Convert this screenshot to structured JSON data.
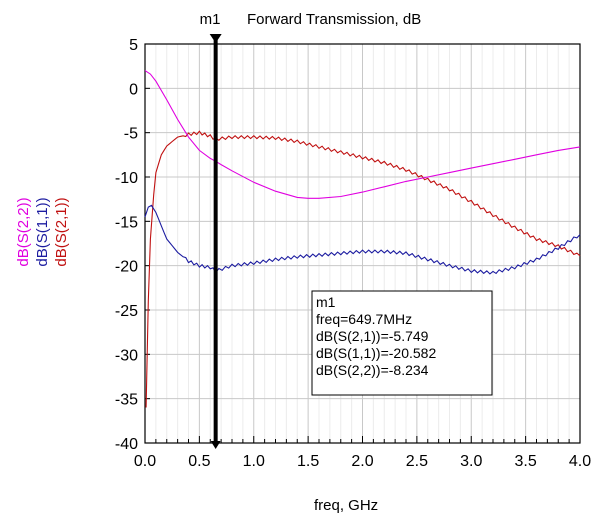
{
  "chart_data": {
    "type": "line",
    "title": "Forward Transmission, dB",
    "xlabel": "freq, GHz",
    "ylabels": [
      {
        "text": "dB(S(2,2))",
        "color": "#e000e0"
      },
      {
        "text": "dB(S(1,1))",
        "color": "#1c1ca0"
      },
      {
        "text": "dB(S(2,1))",
        "color": "#c01010"
      }
    ],
    "xlim": [
      0,
      4
    ],
    "ylim": [
      -40,
      5
    ],
    "xticks": [
      0,
      0.5,
      1,
      1.5,
      2,
      2.5,
      3,
      3.5,
      4
    ],
    "xtick_labels": [
      "0.0",
      "0.5",
      "1.0",
      "1.5",
      "2.0",
      "2.5",
      "3.0",
      "3.5",
      "4.0"
    ],
    "yticks": [
      5,
      0,
      -5,
      -10,
      -15,
      -20,
      -25,
      -30,
      -35,
      -40
    ],
    "ytick_labels": [
      "5",
      "0",
      "-5",
      "-10",
      "-15",
      "-20",
      "-25",
      "-30",
      "-35",
      "-40"
    ],
    "grid": true,
    "series": [
      {
        "name": "dB(S(2,1))",
        "color": "#c01010",
        "x": [
          0.01,
          0.03,
          0.05,
          0.08,
          0.1,
          0.15,
          0.2,
          0.25,
          0.3,
          0.4,
          0.5,
          0.6,
          0.65,
          0.8,
          1.0,
          1.2,
          1.4,
          1.6,
          1.8,
          2.0,
          2.2,
          2.4,
          2.6,
          2.8,
          3.0,
          3.2,
          3.4,
          3.6,
          3.8,
          4.0
        ],
        "y": [
          -36,
          -24,
          -17,
          -12,
          -9.5,
          -7.5,
          -6.5,
          -6,
          -5.5,
          -5.2,
          -5,
          -5.4,
          -5.75,
          -5.5,
          -5.5,
          -5.6,
          -6,
          -6.6,
          -7.2,
          -7.8,
          -8.4,
          -9.2,
          -10.3,
          -11.4,
          -12.8,
          -14.3,
          -15.7,
          -17,
          -17.8,
          -18.9
        ],
        "jitter": true
      },
      {
        "name": "dB(S(1,1))",
        "color": "#1c1ca0",
        "x": [
          0.0,
          0.03,
          0.06,
          0.1,
          0.15,
          0.2,
          0.3,
          0.4,
          0.5,
          0.6,
          0.65,
          0.8,
          1.0,
          1.2,
          1.4,
          1.6,
          1.8,
          2.0,
          2.2,
          2.4,
          2.6,
          2.8,
          3.0,
          3.2,
          3.4,
          3.6,
          3.8,
          4.0
        ],
        "y": [
          -14.5,
          -13.4,
          -13.2,
          -14,
          -15.5,
          -17,
          -18.5,
          -19.5,
          -20,
          -20.2,
          -20.6,
          -20,
          -19.7,
          -19.3,
          -19,
          -18.8,
          -18.6,
          -18.4,
          -18.4,
          -18.6,
          -19.3,
          -20,
          -20.6,
          -20.8,
          -20.2,
          -19.3,
          -18,
          -16.5
        ],
        "jitter": true
      },
      {
        "name": "dB(S(2,2))",
        "color": "#e000e0",
        "x": [
          0.0,
          0.05,
          0.1,
          0.2,
          0.3,
          0.4,
          0.5,
          0.6,
          0.65,
          0.7,
          0.8,
          1.0,
          1.2,
          1.4,
          1.5,
          1.6,
          1.8,
          2.0,
          2.2,
          2.4,
          2.6,
          2.8,
          3.0,
          3.2,
          3.4,
          3.6,
          3.8,
          4.0
        ],
        "y": [
          2,
          1.6,
          0.8,
          -1.3,
          -3.5,
          -5.5,
          -7,
          -7.9,
          -8.23,
          -8.6,
          -9.3,
          -10.6,
          -11.6,
          -12.3,
          -12.4,
          -12.4,
          -12.2,
          -11.7,
          -11.1,
          -10.5,
          -10,
          -9.5,
          -9,
          -8.5,
          -8,
          -7.5,
          -7,
          -6.6
        ],
        "jitter": false
      }
    ],
    "marker": {
      "name": "m1",
      "x": 0.6497,
      "readout": [
        "m1",
        "freq=649.7MHz",
        "dB(S(2,1))=-5.749",
        "dB(S(1,1))=-20.582",
        "dB(S(2,2))=-8.234"
      ]
    }
  }
}
